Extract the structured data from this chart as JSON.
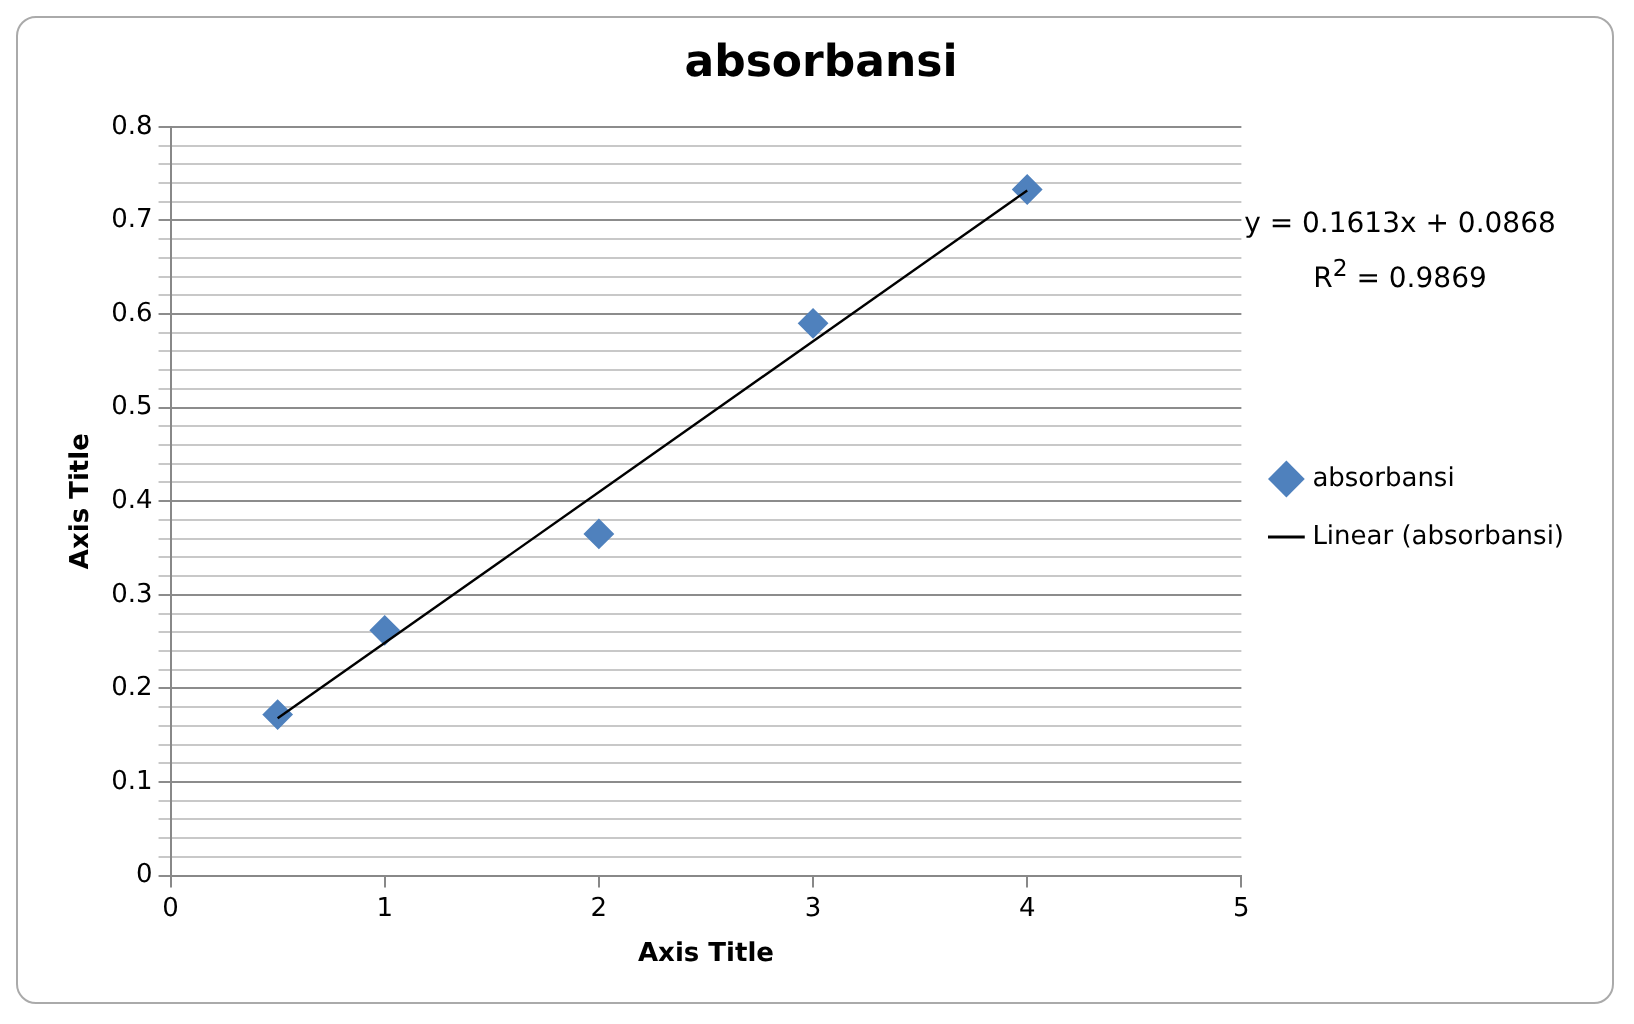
{
  "chart_data": {
    "type": "scatter",
    "title": "absorbansi",
    "xlabel": "Axis Title",
    "ylabel": "Axis Title",
    "annotations": [
      "y = 0.1613x + 0.0868",
      "R$^{2}$ = 0.9869"
    ],
    "series": [
      {
        "name": "absorbansi",
        "marker": "diamond",
        "color": "#4f81bd",
        "x": [
          0.5,
          1,
          2,
          3,
          4
        ],
        "values": [
          0.172,
          0.262,
          0.365,
          0.59,
          0.733
        ]
      },
      {
        "name": "Linear (absorbansi)",
        "type": "line",
        "marker": "none",
        "line_style": "solid",
        "color": "#000000",
        "x": [
          0.5,
          4
        ],
        "values": [
          0.168,
          0.732
        ]
      }
    ],
    "xlim": [
      0,
      5
    ],
    "xticks": [
      0,
      1,
      2,
      3,
      4,
      5
    ],
    "ylim": [
      0,
      0.8
    ],
    "yticks": [
      0,
      {
        "value": 0.02,
        "label": null
      },
      {
        "value": 0.04,
        "label": null
      },
      {
        "value": 0.06,
        "label": null
      },
      {
        "value": 0.08,
        "label": null
      },
      0.1,
      {
        "value": 0.12,
        "label": null
      },
      {
        "value": 0.14,
        "label": null
      },
      {
        "value": 0.16,
        "label": null
      },
      {
        "value": 0.18,
        "label": null
      },
      0.2,
      {
        "value": 0.22,
        "label": null
      },
      {
        "value": 0.24,
        "label": null
      },
      {
        "value": 0.26,
        "label": null
      },
      {
        "value": 0.28,
        "label": null
      },
      0.3,
      {
        "value": 0.32,
        "label": null
      },
      {
        "value": 0.34,
        "label": null
      },
      {
        "value": 0.36,
        "label": null
      },
      {
        "value": 0.38,
        "label": null
      },
      0.4,
      {
        "value": 0.42,
        "label": null
      },
      {
        "value": 0.44,
        "label": null
      },
      {
        "value": 0.46,
        "label": null
      },
      {
        "value": 0.48,
        "label": null
      },
      0.5,
      {
        "value": 0.52,
        "label": null
      },
      {
        "value": 0.54,
        "label": null
      },
      {
        "value": 0.56,
        "label": null
      },
      {
        "value": 0.58,
        "label": null
      },
      0.6,
      {
        "value": 0.62,
        "label": null
      },
      {
        "value": 0.64,
        "label": null
      },
      {
        "value": 0.66,
        "label": null
      },
      {
        "value": 0.68,
        "label": null
      },
      0.7,
      {
        "value": 0.72,
        "label": null
      },
      {
        "value": 0.74,
        "label": null
      },
      {
        "value": 0.76,
        "label": null
      },
      {
        "value": 0.78,
        "label": null
      },
      0.8
    ],
    "grid": "y",
    "legend": "right"
  }
}
